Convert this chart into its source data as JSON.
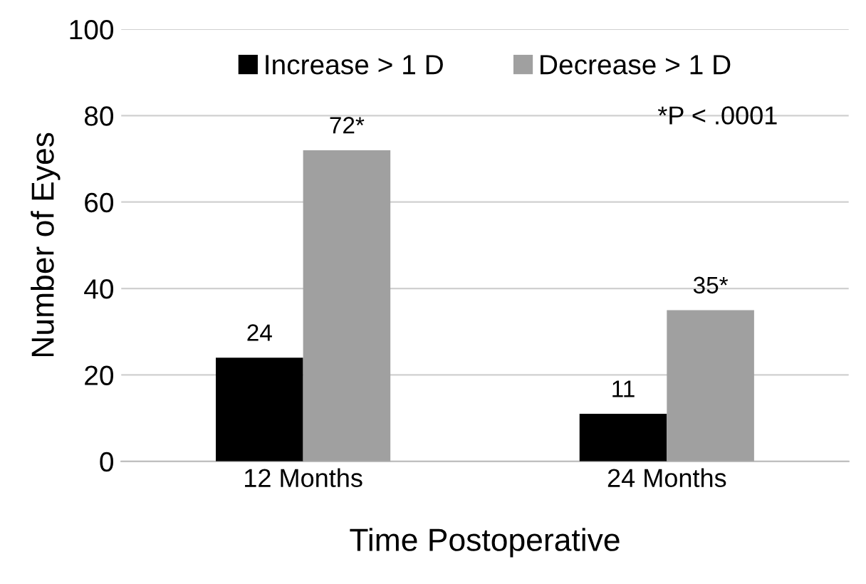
{
  "chart_data": {
    "type": "bar",
    "xlabel": "Time Postoperative",
    "ylabel": "Number of Eyes",
    "categories": [
      "12 Months",
      "24 Months"
    ],
    "series": [
      {
        "name": "Increase > 1 D",
        "color": "#000000",
        "values": [
          24,
          11
        ],
        "value_labels": [
          "24",
          "11"
        ]
      },
      {
        "name": "Decrease > 1 D",
        "color": "#a0a0a0",
        "values": [
          72,
          35
        ],
        "value_labels": [
          "72*",
          "35*"
        ]
      }
    ],
    "ylim": [
      0,
      100
    ],
    "yticks": [
      0,
      20,
      40,
      60,
      80,
      100
    ],
    "grid": "y",
    "legend": "top",
    "annotations": [
      "*P < .0001"
    ]
  }
}
